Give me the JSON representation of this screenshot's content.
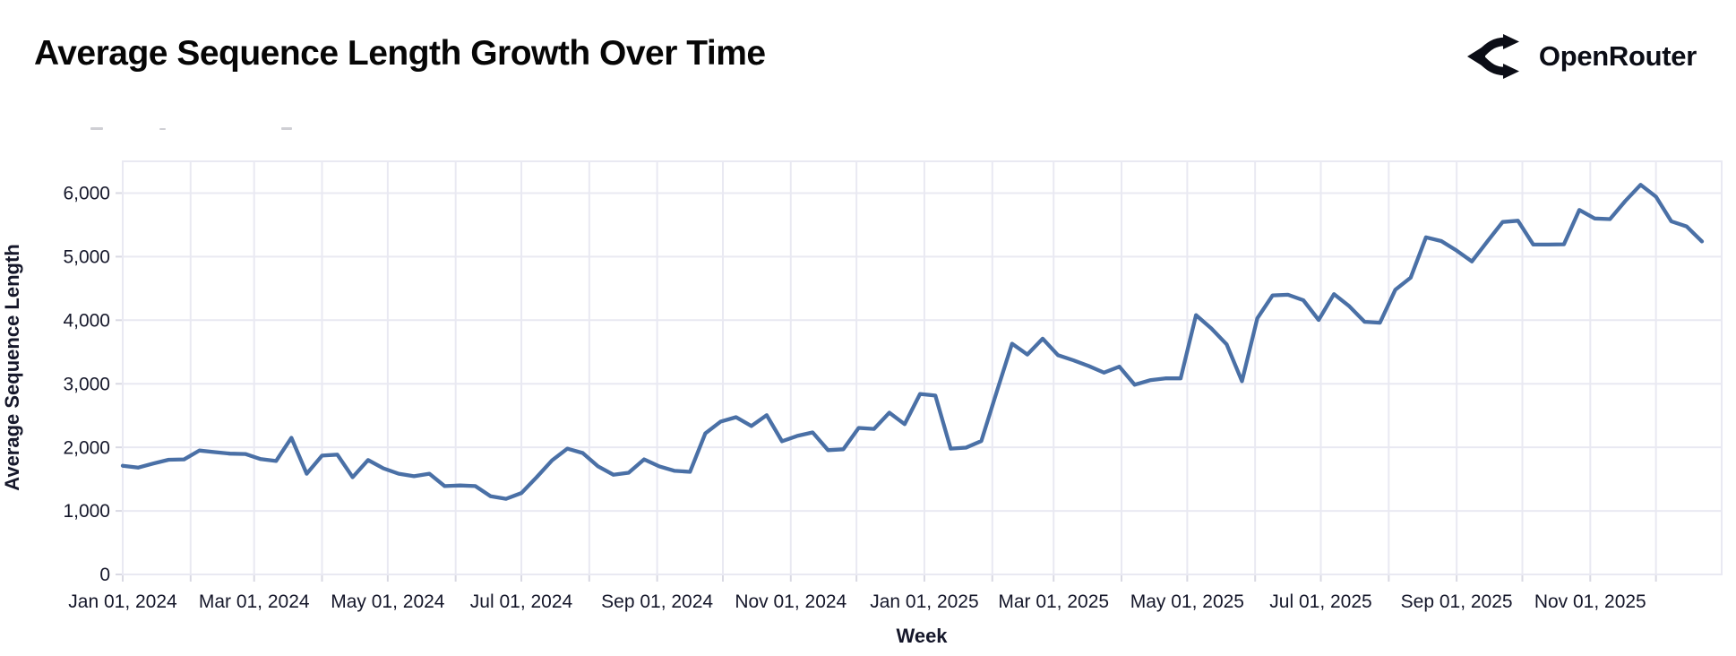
{
  "header": {
    "title": "Average Sequence Length Growth Over Time",
    "brand": {
      "name": "OpenRouter",
      "icon": "openrouter-fork-icon"
    }
  },
  "chart_data": {
    "type": "line",
    "title": "Average Sequence Length Growth Over Time",
    "xlabel": "Week",
    "ylabel": "Average Sequence Length",
    "x_unit": "weekly",
    "x_start_date": "2024-01-01",
    "x_step_days": 7,
    "x_tick_labels": [
      "Jan 01, 2024",
      "Mar 01, 2024",
      "May 01, 2024",
      "Jul 01, 2024",
      "Sep 01, 2024",
      "Nov 01, 2024",
      "Jan 01, 2025",
      "Mar 01, 2025",
      "May 01, 2025",
      "Jul 01, 2025",
      "Sep 01, 2025",
      "Nov 01, 2025"
    ],
    "y_ticks": [
      0,
      1000,
      2000,
      3000,
      4000,
      5000,
      6000
    ],
    "y_tick_labels": [
      "0",
      "1,000",
      "2,000",
      "3,000",
      "4,000",
      "5,000",
      "6,000"
    ],
    "ylim": [
      0,
      6500
    ],
    "grid": true,
    "legend": "none",
    "line_color": "#4a70a6",
    "grid_color": "#e9e9f2",
    "tick_mark_color": "#d9d9e3",
    "tick_text_color": "#15172a",
    "values": [
      1710,
      1680,
      1745,
      1805,
      1810,
      1950,
      1925,
      1900,
      1895,
      1815,
      1785,
      2150,
      1585,
      1870,
      1885,
      1530,
      1800,
      1670,
      1585,
      1545,
      1585,
      1390,
      1400,
      1390,
      1230,
      1190,
      1280,
      1530,
      1795,
      1980,
      1910,
      1700,
      1570,
      1600,
      1810,
      1700,
      1630,
      1615,
      2220,
      2405,
      2475,
      2335,
      2505,
      2095,
      2180,
      2235,
      1955,
      1970,
      2305,
      2290,
      2545,
      2365,
      2840,
      2815,
      1980,
      1995,
      2100,
      2870,
      3630,
      3460,
      3710,
      3450,
      3370,
      3280,
      3175,
      3270,
      2985,
      3055,
      3085,
      3085,
      4080,
      3870,
      3620,
      3040,
      4030,
      4390,
      4400,
      4315,
      4005,
      4410,
      4220,
      3975,
      3960,
      4480,
      4670,
      5305,
      5245,
      5095,
      4925,
      5240,
      5545,
      5565,
      5190,
      5190,
      5195,
      5735,
      5600,
      5590,
      5875,
      6130,
      5945,
      5555,
      5475,
      5240
    ]
  }
}
